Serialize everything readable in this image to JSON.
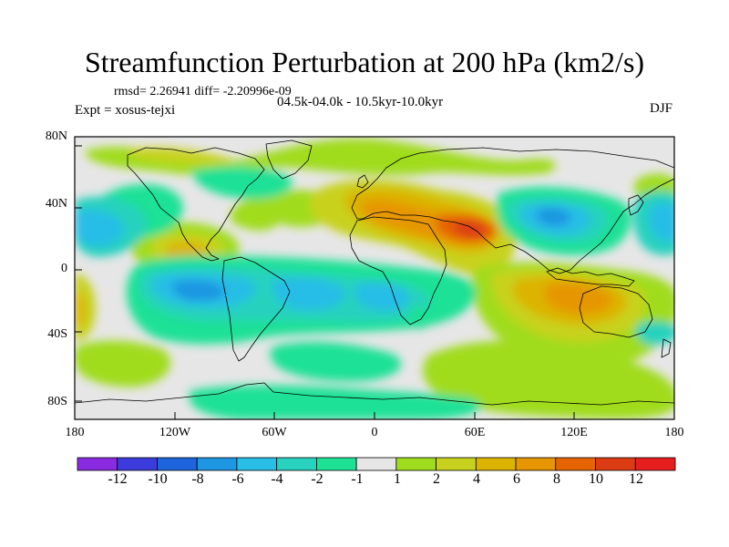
{
  "map": {
    "title": "Streamfunction Perturbation at 200 hPa (km2/s)",
    "stats": "rmsd= 2.26941 diff= -2.20996e-09",
    "expt": "Expt = xosus-tejxi",
    "period": "04.5k-04.0k - 10.5kyr-10.0kyr",
    "season": "DJF",
    "lat_labels": [
      "80N",
      "40N",
      "0",
      "40S",
      "80S"
    ],
    "lon_labels": [
      "180",
      "120W",
      "60W",
      "0",
      "60E",
      "120E",
      "180"
    ],
    "colors": {
      "map_background": "#e6e6e6",
      "coastline": "#000000"
    }
  },
  "colorbar": {
    "labels": [
      "-12",
      "-10",
      "-8",
      "-6",
      "-4",
      "-2",
      "-1",
      "1",
      "2",
      "4",
      "6",
      "8",
      "10",
      "12"
    ],
    "colors": [
      "#8a2be2",
      "#3c3cdc",
      "#1e64dc",
      "#1e96e1",
      "#28bee6",
      "#28d2be",
      "#1ee196",
      "#e6e6e6",
      "#a0dc1e",
      "#c8d21e",
      "#dcb400",
      "#e69600",
      "#e66400",
      "#dc3c14",
      "#e61e1e"
    ]
  }
}
